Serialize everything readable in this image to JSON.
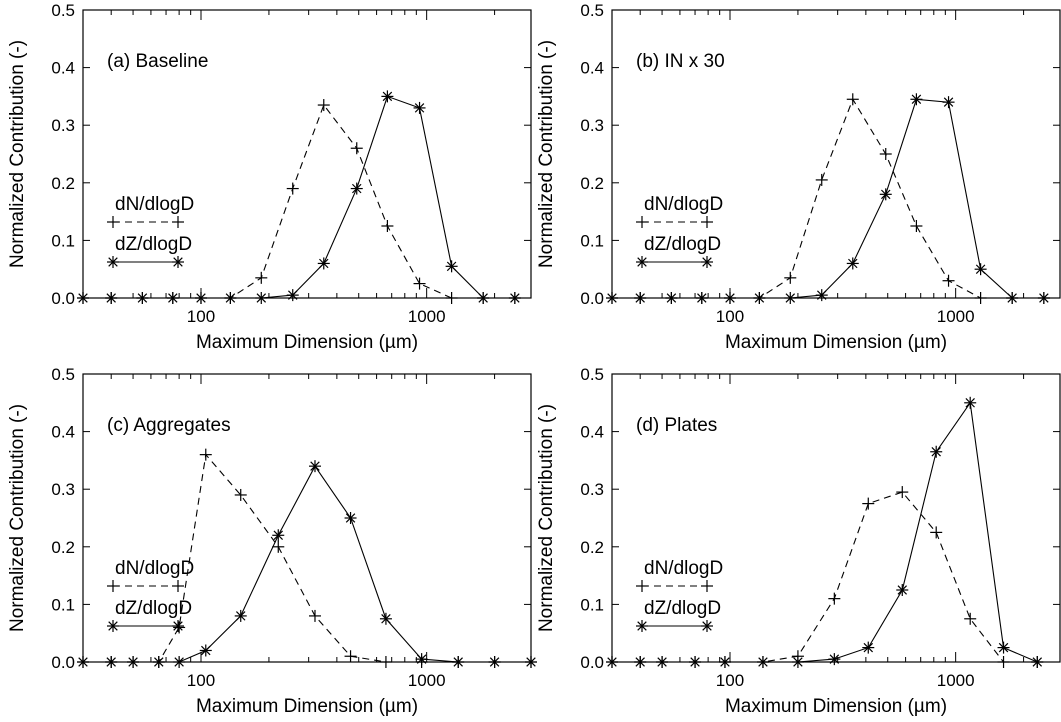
{
  "chart_data": [
    {
      "type": "line",
      "panel_label": "(a) Baseline",
      "xlabel": "Maximum Dimension (µm)",
      "ylabel": "Normalized Contribution (-)",
      "xscale": "log",
      "xlim": [
        30,
        2900
      ],
      "ylim": [
        0,
        0.5
      ],
      "xticks": [
        {
          "value": 100,
          "label": "100"
        },
        {
          "value": 1000,
          "label": "1000"
        }
      ],
      "yticks": [
        {
          "value": 0.0,
          "label": "0.0"
        },
        {
          "value": 0.1,
          "label": "0.1"
        },
        {
          "value": 0.2,
          "label": "0.2"
        },
        {
          "value": 0.3,
          "label": "0.3"
        },
        {
          "value": 0.4,
          "label": "0.4"
        },
        {
          "value": 0.5,
          "label": "0.5"
        }
      ],
      "legend_position": "left",
      "series": [
        {
          "name": "dN/dlogD",
          "marker": "plus",
          "dash": "dashed",
          "x": [
            30,
            40,
            55,
            75,
            100,
            135,
            185,
            255,
            350,
            490,
            670,
            930,
            1290,
            1780,
            2460
          ],
          "y": [
            0,
            0,
            0,
            0,
            0,
            0,
            0.035,
            0.19,
            0.335,
            0.26,
            0.125,
            0.025,
            0,
            0,
            0
          ]
        },
        {
          "name": "dZ/dlogD",
          "marker": "asterisk",
          "dash": "solid",
          "x": [
            30,
            40,
            55,
            75,
            100,
            135,
            185,
            255,
            350,
            490,
            670,
            930,
            1290,
            1780,
            2460
          ],
          "y": [
            0,
            0,
            0,
            0,
            0,
            0,
            0,
            0.005,
            0.06,
            0.19,
            0.35,
            0.33,
            0.055,
            0,
            0
          ]
        }
      ]
    },
    {
      "type": "line",
      "panel_label": "(b) IN x 30",
      "xlabel": "Maximum Dimension (µm)",
      "ylabel": "Normalized Contribution (-)",
      "xscale": "log",
      "xlim": [
        30,
        2900
      ],
      "ylim": [
        0,
        0.5
      ],
      "xticks": [
        {
          "value": 100,
          "label": "100"
        },
        {
          "value": 1000,
          "label": "1000"
        }
      ],
      "yticks": [
        {
          "value": 0.0,
          "label": "0.0"
        },
        {
          "value": 0.1,
          "label": "0.1"
        },
        {
          "value": 0.2,
          "label": "0.2"
        },
        {
          "value": 0.3,
          "label": "0.3"
        },
        {
          "value": 0.4,
          "label": "0.4"
        },
        {
          "value": 0.5,
          "label": "0.5"
        }
      ],
      "legend_position": "left",
      "series": [
        {
          "name": "dN/dlogD",
          "marker": "plus",
          "dash": "dashed",
          "x": [
            30,
            40,
            55,
            75,
            100,
            135,
            185,
            255,
            350,
            490,
            670,
            930,
            1290,
            1780,
            2460
          ],
          "y": [
            0,
            0,
            0,
            0,
            0,
            0,
            0.035,
            0.205,
            0.345,
            0.25,
            0.125,
            0.03,
            0,
            0,
            0
          ]
        },
        {
          "name": "dZ/dlogD",
          "marker": "asterisk",
          "dash": "solid",
          "x": [
            30,
            40,
            55,
            75,
            100,
            135,
            185,
            255,
            350,
            490,
            670,
            930,
            1290,
            1780,
            2460
          ],
          "y": [
            0,
            0,
            0,
            0,
            0,
            0,
            0,
            0.005,
            0.06,
            0.18,
            0.345,
            0.34,
            0.05,
            0,
            0
          ]
        }
      ]
    },
    {
      "type": "line",
      "panel_label": "(c) Aggregates",
      "xlabel": "Maximum Dimension (µm)",
      "ylabel": "Normalized Contribution (-)",
      "xscale": "log",
      "xlim": [
        30,
        2900
      ],
      "ylim": [
        0,
        0.5
      ],
      "xticks": [
        {
          "value": 100,
          "label": "100"
        },
        {
          "value": 1000,
          "label": "1000"
        }
      ],
      "yticks": [
        {
          "value": 0.0,
          "label": "0.0"
        },
        {
          "value": 0.1,
          "label": "0.1"
        },
        {
          "value": 0.2,
          "label": "0.2"
        },
        {
          "value": 0.3,
          "label": "0.3"
        },
        {
          "value": 0.4,
          "label": "0.4"
        },
        {
          "value": 0.5,
          "label": "0.5"
        }
      ],
      "legend_position": "left",
      "series": [
        {
          "name": "dN/dlogD",
          "marker": "plus",
          "dash": "dashed",
          "x": [
            30,
            40,
            50,
            65,
            80,
            105,
            150,
            220,
            320,
            460,
            660,
            950,
            1380,
            2000,
            2900
          ],
          "y": [
            0,
            0,
            0,
            0,
            0.06,
            0.36,
            0.29,
            0.2,
            0.08,
            0.01,
            0,
            0,
            0,
            0,
            0
          ]
        },
        {
          "name": "dZ/dlogD",
          "marker": "asterisk",
          "dash": "solid",
          "x": [
            30,
            40,
            50,
            65,
            80,
            105,
            150,
            220,
            320,
            460,
            660,
            950,
            1380,
            2000,
            2900
          ],
          "y": [
            0,
            0,
            0,
            0,
            0,
            0.02,
            0.08,
            0.22,
            0.34,
            0.25,
            0.075,
            0.005,
            0,
            0,
            0
          ]
        }
      ]
    },
    {
      "type": "line",
      "panel_label": "(d) Plates",
      "xlabel": "Maximum Dimension (µm)",
      "ylabel": "Normalized Contribution (-)",
      "xscale": "log",
      "xlim": [
        30,
        2900
      ],
      "ylim": [
        0,
        0.5
      ],
      "xticks": [
        {
          "value": 100,
          "label": "100"
        },
        {
          "value": 1000,
          "label": "1000"
        }
      ],
      "yticks": [
        {
          "value": 0.0,
          "label": "0.0"
        },
        {
          "value": 0.1,
          "label": "0.1"
        },
        {
          "value": 0.2,
          "label": "0.2"
        },
        {
          "value": 0.3,
          "label": "0.3"
        },
        {
          "value": 0.4,
          "label": "0.4"
        },
        {
          "value": 0.5,
          "label": "0.5"
        }
      ],
      "legend_position": "left",
      "series": [
        {
          "name": "dN/dlogD",
          "marker": "plus",
          "dash": "dashed",
          "x": [
            30,
            40,
            50,
            70,
            95,
            140,
            200,
            290,
            410,
            580,
            820,
            1160,
            1630,
            2300
          ],
          "y": [
            0,
            0,
            0,
            0,
            0,
            0,
            0.01,
            0.11,
            0.275,
            0.295,
            0.225,
            0.075,
            0,
            0
          ]
        },
        {
          "name": "dZ/dlogD",
          "marker": "asterisk",
          "dash": "solid",
          "x": [
            30,
            40,
            50,
            70,
            95,
            140,
            200,
            290,
            410,
            580,
            820,
            1160,
            1630,
            2300
          ],
          "y": [
            0,
            0,
            0,
            0,
            0,
            0,
            0,
            0.005,
            0.025,
            0.125,
            0.365,
            0.45,
            0.025,
            0
          ]
        }
      ]
    }
  ]
}
